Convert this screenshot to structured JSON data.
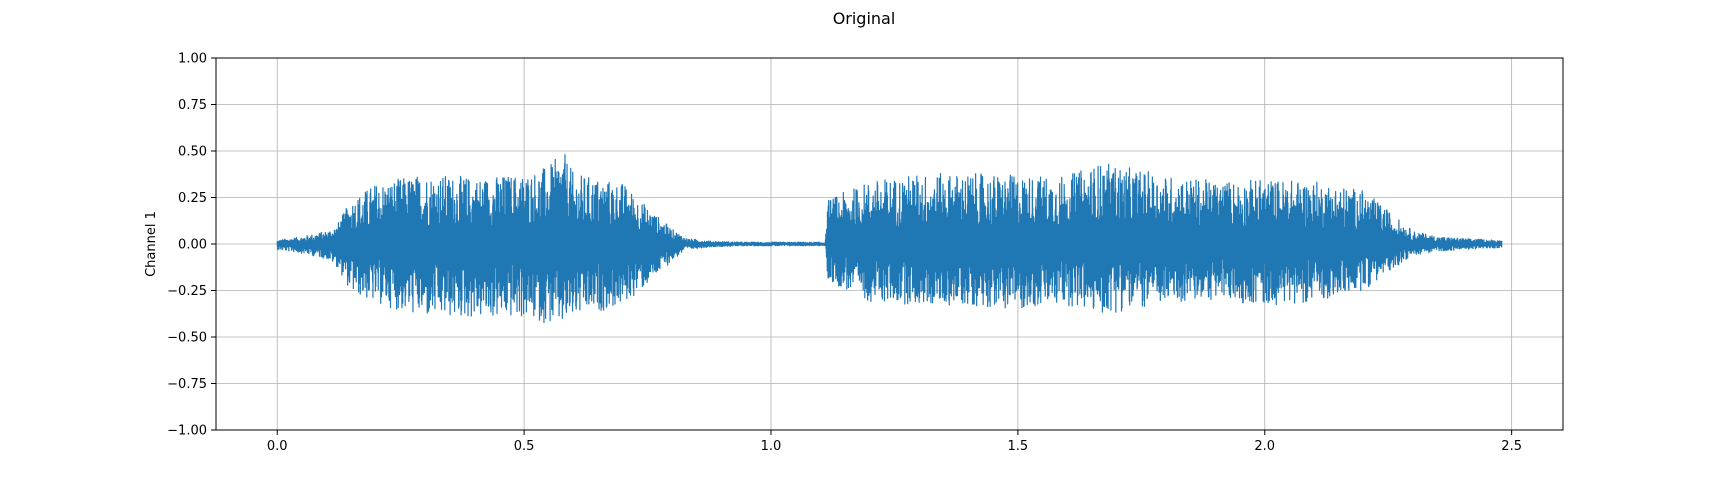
{
  "chart_data": {
    "type": "line",
    "title": "Original",
    "xlabel": "",
    "ylabel": "Channel 1",
    "xlim": [
      -0.124,
      2.604
    ],
    "ylim": [
      -1.0,
      1.0
    ],
    "xticks": [
      0.0,
      0.5,
      1.0,
      1.5,
      2.0,
      2.5
    ],
    "xtick_labels": [
      "0.0",
      "0.5",
      "1.0",
      "1.5",
      "2.0",
      "2.5"
    ],
    "yticks": [
      -1.0,
      -0.75,
      -0.5,
      -0.25,
      0.0,
      0.25,
      0.5,
      0.75,
      1.0
    ],
    "ytick_labels": [
      "−1.00",
      "−0.75",
      "−0.50",
      "−0.25",
      "0.00",
      "0.25",
      "0.50",
      "0.75",
      "1.00"
    ],
    "grid": true,
    "line_color": "#1f77b4",
    "duration": 2.48,
    "series": [
      {
        "envelope_time": [
          0.0,
          0.05,
          0.1,
          0.12,
          0.15,
          0.2,
          0.3,
          0.4,
          0.5,
          0.55,
          0.58,
          0.6,
          0.7,
          0.75,
          0.8,
          0.83,
          0.88,
          0.95,
          1.05,
          1.11,
          1.115,
          1.2,
          1.3,
          1.4,
          1.5,
          1.6,
          1.67,
          1.8,
          1.9,
          2.0,
          2.1,
          2.2,
          2.25,
          2.3,
          2.35,
          2.4,
          2.48
        ],
        "envelope_upper": [
          0.02,
          0.04,
          0.07,
          0.1,
          0.24,
          0.33,
          0.38,
          0.36,
          0.38,
          0.42,
          0.5,
          0.38,
          0.33,
          0.2,
          0.08,
          0.03,
          0.015,
          0.01,
          0.01,
          0.01,
          0.24,
          0.34,
          0.38,
          0.38,
          0.37,
          0.37,
          0.44,
          0.37,
          0.34,
          0.35,
          0.34,
          0.29,
          0.18,
          0.07,
          0.04,
          0.03,
          0.02
        ],
        "envelope_lower": [
          -0.03,
          -0.05,
          -0.08,
          -0.12,
          -0.26,
          -0.32,
          -0.4,
          -0.4,
          -0.4,
          -0.43,
          -0.45,
          -0.4,
          -0.33,
          -0.22,
          -0.09,
          -0.03,
          -0.015,
          -0.01,
          -0.01,
          -0.01,
          -0.2,
          -0.31,
          -0.33,
          -0.33,
          -0.35,
          -0.33,
          -0.38,
          -0.32,
          -0.3,
          -0.33,
          -0.31,
          -0.25,
          -0.15,
          -0.06,
          -0.04,
          -0.03,
          -0.02
        ]
      }
    ]
  }
}
